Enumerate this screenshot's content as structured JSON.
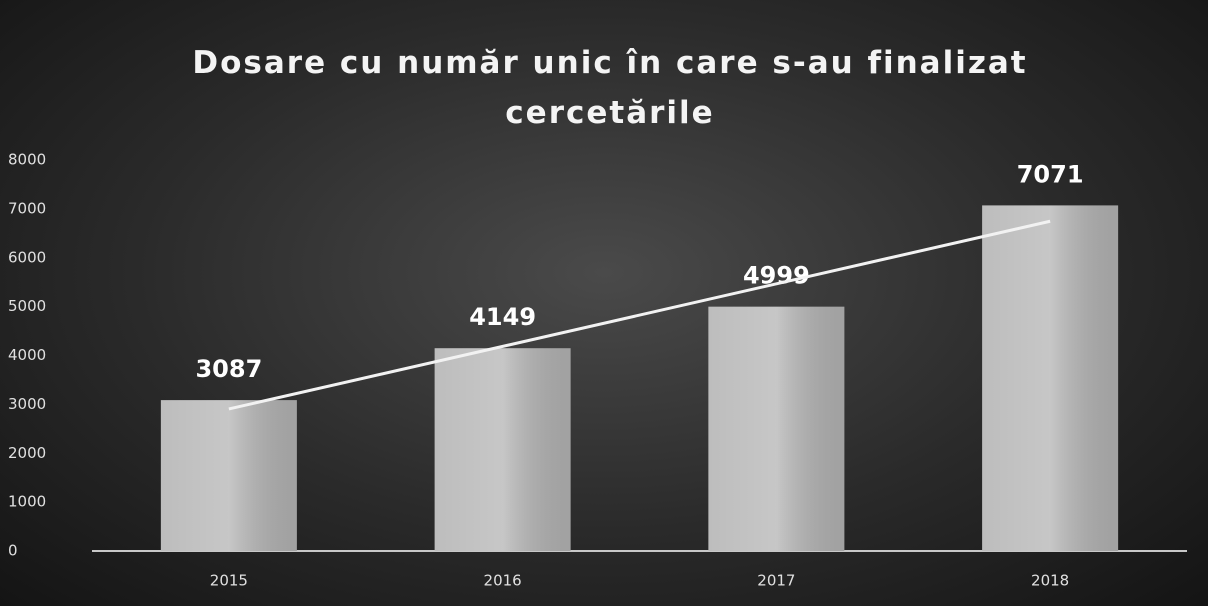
{
  "chart_data": {
    "type": "bar",
    "title": "Dosare cu număr unic în care s-au finalizat cercetările",
    "categories": [
      "2015",
      "2016",
      "2017",
      "2018"
    ],
    "values": [
      3087,
      4149,
      4999,
      7071
    ],
    "color": "#b4b4b4",
    "ylim": [
      0,
      8000
    ],
    "yticks": [
      0,
      1000,
      2000,
      3000,
      4000,
      5000,
      6000,
      7000,
      8000
    ],
    "grid": false,
    "trendline": "linear",
    "trendline_color": "#f2f2f2"
  }
}
